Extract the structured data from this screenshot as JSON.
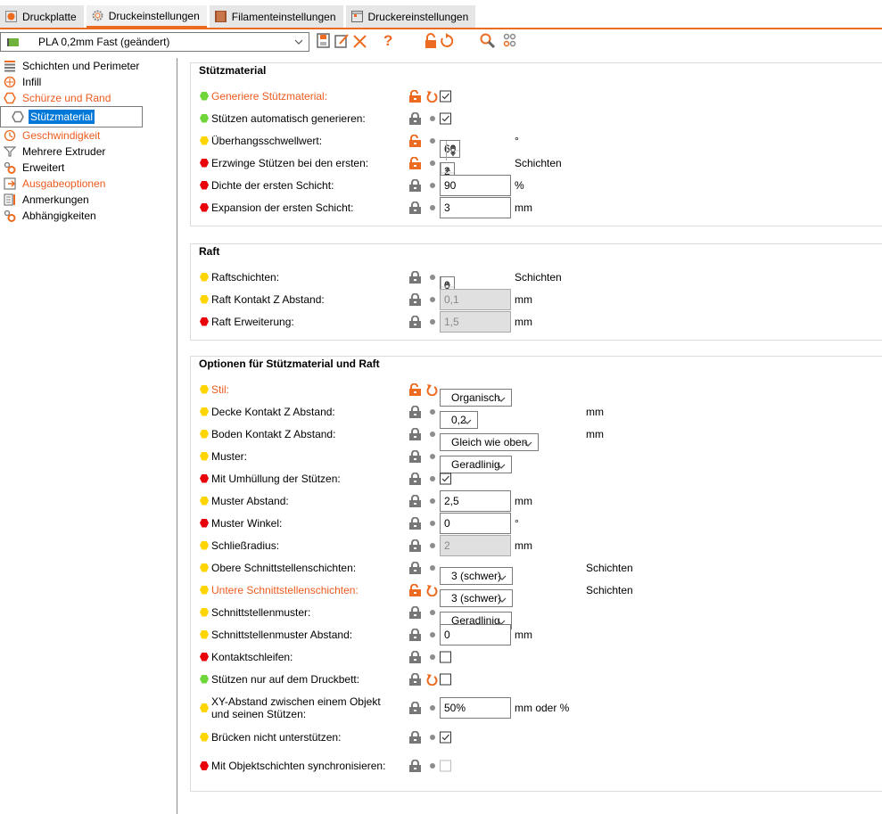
{
  "tabs": [
    {
      "label": "Druckplatte",
      "icon": "plate-icon",
      "active": false
    },
    {
      "label": "Druckeinstellungen",
      "icon": "gear-icon",
      "active": true
    },
    {
      "label": "Filamenteinstellungen",
      "icon": "spool-icon",
      "active": false
    },
    {
      "label": "Druckereinstellungen",
      "icon": "printer-icon",
      "active": false
    }
  ],
  "toolbar": {
    "preset": "PLA 0,2mm Fast (geändert)",
    "help": "?"
  },
  "colors": {
    "accent": "#ed6b21",
    "simple": "#6fd63a",
    "advanced": "#ffd500",
    "expert": "#e8000b",
    "selection": "#0078d7"
  },
  "sidebar": {
    "items": [
      {
        "label": "Schichten und Perimeter",
        "icon": "layers-icon",
        "modified": false,
        "selected": false
      },
      {
        "label": "Infill",
        "icon": "infill-icon",
        "modified": false,
        "selected": false
      },
      {
        "label": "Schürze und Rand",
        "icon": "skirt-icon",
        "modified": true,
        "selected": false
      },
      {
        "label": "Stützmaterial",
        "icon": "support-icon",
        "modified": false,
        "selected": true
      },
      {
        "label": "Geschwindigkeit",
        "icon": "clock-icon",
        "modified": true,
        "selected": false
      },
      {
        "label": "Mehrere Extruder",
        "icon": "funnel-icon",
        "modified": false,
        "selected": false
      },
      {
        "label": "Erweitert",
        "icon": "wrench-icon",
        "modified": false,
        "selected": false
      },
      {
        "label": "Ausgabeoptionen",
        "icon": "output-icon",
        "modified": true,
        "selected": false
      },
      {
        "label": "Anmerkungen",
        "icon": "notes-icon",
        "modified": false,
        "selected": false
      },
      {
        "label": "Abhängigkeiten",
        "icon": "dependencies-icon",
        "modified": false,
        "selected": false
      }
    ]
  },
  "groups": [
    {
      "title": "Stützmaterial",
      "rows": [
        {
          "label": "Generiere Stützmaterial:",
          "level": "simple",
          "changed": true,
          "unlocked": true,
          "reset": true,
          "type": "checkbox",
          "checked": true
        },
        {
          "label": "Stützen automatisch generieren:",
          "level": "simple",
          "changed": false,
          "unlocked": false,
          "reset": false,
          "type": "checkbox",
          "checked": true
        },
        {
          "label": "Überhangsschwellwert:",
          "level": "advanced",
          "changed": false,
          "unlocked": true,
          "reset": false,
          "type": "spin",
          "value": "60",
          "unit": "°"
        },
        {
          "label": "Erzwinge Stützen bei den ersten:",
          "level": "expert",
          "changed": false,
          "unlocked": true,
          "reset": false,
          "type": "spin",
          "value": "2",
          "unit": "Schichten"
        },
        {
          "label": "Dichte der ersten Schicht:",
          "level": "expert",
          "changed": false,
          "unlocked": false,
          "reset": false,
          "type": "text",
          "value": "90",
          "unit": "%"
        },
        {
          "label": "Expansion der ersten Schicht:",
          "level": "expert",
          "changed": false,
          "unlocked": false,
          "reset": false,
          "type": "text",
          "value": "3",
          "unit": "mm"
        }
      ]
    },
    {
      "title": "Raft",
      "rows": [
        {
          "label": "Raftschichten:",
          "level": "advanced",
          "changed": false,
          "unlocked": false,
          "reset": false,
          "type": "spin",
          "value": "0",
          "unit": "Schichten"
        },
        {
          "label": "Raft Kontakt Z Abstand:",
          "level": "advanced",
          "changed": false,
          "unlocked": false,
          "reset": false,
          "type": "text",
          "value": "0,1",
          "unit": "mm",
          "disabled": true
        },
        {
          "label": "Raft Erweiterung:",
          "level": "expert",
          "changed": false,
          "unlocked": false,
          "reset": false,
          "type": "text",
          "value": "1,5",
          "unit": "mm",
          "disabled": true
        }
      ]
    },
    {
      "title": "Optionen für Stützmaterial und Raft",
      "rows": [
        {
          "label": "Stil:",
          "level": "advanced",
          "changed": true,
          "unlocked": true,
          "reset": true,
          "type": "select",
          "value": "Organisch"
        },
        {
          "label": "Decke Kontakt Z Abstand:",
          "level": "advanced",
          "changed": false,
          "unlocked": false,
          "reset": false,
          "type": "select",
          "value": "0,2",
          "unit": "mm"
        },
        {
          "label": "Boden Kontakt Z Abstand:",
          "level": "advanced",
          "changed": false,
          "unlocked": false,
          "reset": false,
          "type": "select",
          "value": "Gleich wie oben",
          "unit": "mm"
        },
        {
          "label": "Muster:",
          "level": "advanced",
          "changed": false,
          "unlocked": false,
          "reset": false,
          "type": "select",
          "value": "Geradlinig"
        },
        {
          "label": "Mit Umhüllung der Stützen:",
          "level": "expert",
          "changed": false,
          "unlocked": false,
          "reset": false,
          "type": "checkbox",
          "checked": true
        },
        {
          "label": "Muster Abstand:",
          "level": "advanced",
          "changed": false,
          "unlocked": false,
          "reset": false,
          "type": "text",
          "value": "2,5",
          "unit": "mm"
        },
        {
          "label": "Muster Winkel:",
          "level": "expert",
          "changed": false,
          "unlocked": false,
          "reset": false,
          "type": "text",
          "value": "0",
          "unit": "°"
        },
        {
          "label": "Schließradius:",
          "level": "advanced",
          "changed": false,
          "unlocked": false,
          "reset": false,
          "type": "text",
          "value": "2",
          "unit": "mm",
          "disabled": true
        },
        {
          "label": "Obere Schnittstellenschichten:",
          "level": "advanced",
          "changed": false,
          "unlocked": false,
          "reset": false,
          "type": "select",
          "value": "3 (schwer)",
          "unit": "Schichten"
        },
        {
          "label": "Untere Schnittstellenschichten:",
          "level": "advanced",
          "changed": true,
          "unlocked": true,
          "reset": true,
          "type": "select",
          "value": "3 (schwer)",
          "unit": "Schichten"
        },
        {
          "label": "Schnittstellenmuster:",
          "level": "advanced",
          "changed": false,
          "unlocked": false,
          "reset": false,
          "type": "select",
          "value": "Geradlinig"
        },
        {
          "label": "Schnittstellenmuster Abstand:",
          "level": "advanced",
          "changed": false,
          "unlocked": false,
          "reset": false,
          "type": "text",
          "value": "0",
          "unit": "mm"
        },
        {
          "label": "Kontaktschleifen:",
          "level": "expert",
          "changed": false,
          "unlocked": false,
          "reset": false,
          "type": "checkbox",
          "checked": false
        },
        {
          "label": "Stützen nur auf dem Druckbett:",
          "level": "simple",
          "changed": false,
          "unlocked": false,
          "reset": true,
          "type": "checkbox",
          "checked": false
        },
        {
          "label": "XY-Abstand zwischen einem Objekt\nund seinen Stützen:",
          "level": "advanced",
          "changed": false,
          "unlocked": false,
          "reset": false,
          "type": "text",
          "value": "50%",
          "unit": "mm oder %",
          "tall": true
        },
        {
          "label": "Brücken nicht unterstützen:",
          "level": "advanced",
          "changed": false,
          "unlocked": false,
          "reset": false,
          "type": "checkbox",
          "checked": true
        },
        {
          "label": "Mit Objektschichten synchronisieren:",
          "level": "expert",
          "changed": false,
          "unlocked": false,
          "reset": false,
          "type": "checkbox",
          "checked": false,
          "disabled": true,
          "tall": true
        }
      ]
    }
  ]
}
